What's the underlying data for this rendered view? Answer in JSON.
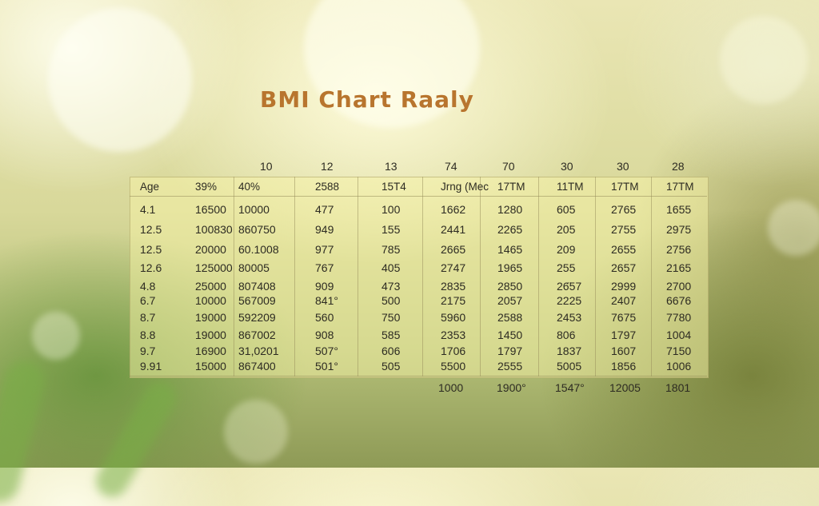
{
  "title": "BMI Chart Raaly",
  "top_labels": [
    "10",
    "12",
    "13",
    "74",
    "70",
    "30",
    "30",
    "28"
  ],
  "header": [
    "Age",
    "39%",
    "40%",
    "2588",
    "15T4",
    "Jrng (Mec",
    "17TM",
    "11TM",
    "17TM",
    "17TM"
  ],
  "rows": [
    [
      "4.1",
      "16500",
      "10000",
      "477",
      "100",
      "1662",
      "1280",
      "605",
      "2765",
      "1655"
    ],
    [
      "12.5",
      "100830",
      "860750",
      "949",
      "155",
      "2441",
      "2265",
      "205",
      "2755",
      "2975"
    ],
    [
      "12.5",
      "20000",
      "60.1008",
      "977",
      "785",
      "2665",
      "1465",
      "209",
      "2655",
      "2756"
    ],
    [
      "12.6",
      "125000",
      "80005",
      "767",
      "405",
      "2747",
      "1965",
      "255",
      "2657",
      "2165"
    ],
    [
      "4.8",
      "25000",
      "807408",
      "909",
      "473",
      "2835",
      "2850",
      "26̈57",
      "2999",
      "2700"
    ],
    [
      "6.7",
      "10000",
      "567009",
      "841°",
      "500",
      "2175",
      "2057",
      "2225",
      "2407",
      "6676"
    ],
    [
      "8.7",
      "19000",
      "592209",
      "560",
      "750",
      "5960",
      "2588",
      "2453",
      "7675",
      "7780"
    ],
    [
      "8.8",
      "19000",
      "867002",
      "908",
      "585",
      "2353",
      "1450",
      "806",
      "1797",
      "1004"
    ],
    [
      "9.7",
      "16900",
      "31,0201",
      "507°",
      "606",
      "1706",
      "1797",
      "1837",
      "1607",
      "7150"
    ],
    [
      "9.91",
      "15000",
      "867400",
      "501°",
      "505",
      "5500",
      "2555",
      "5005",
      "1856",
      "1006"
    ]
  ],
  "bottom_labels": [
    "1000",
    "1900°",
    "1547°",
    "12005",
    "1801"
  ]
}
